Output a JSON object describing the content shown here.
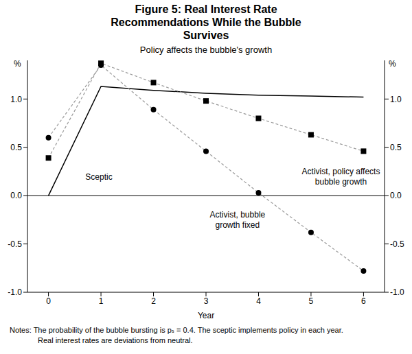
{
  "chart_data": {
    "type": "line",
    "title": "Figure 5: Real Interest Rate Recommendations While the Bubble Survives",
    "subtitle": "Policy affects the bubble's growth",
    "xlabel": "Year",
    "ylabel": "%",
    "x": [
      0,
      1,
      2,
      3,
      4,
      5,
      6
    ],
    "xlim": [
      -0.4,
      6.4
    ],
    "xticks": [
      0,
      1,
      2,
      3,
      4,
      5,
      6
    ],
    "ylim": [
      -1.0,
      1.4
    ],
    "yticks": [
      {
        "value": -1.0,
        "label": "-1.0"
      },
      -0.5,
      {
        "value": 0,
        "label": "0.0"
      },
      0.5,
      {
        "value": 1.0,
        "label": "1.0"
      }
    ],
    "grid": false,
    "series": [
      {
        "name": "Sceptic",
        "color": "#000000",
        "line_style": "solid",
        "marker": "none",
        "values": [
          0.0,
          1.13,
          1.09,
          1.06,
          1.04,
          1.03,
          1.02
        ]
      },
      {
        "name": "Activist, policy affects bubble growth",
        "color": "#9a9a9a",
        "line_style": "dashed",
        "marker": "square",
        "values": [
          0.39,
          1.37,
          1.17,
          0.98,
          0.8,
          0.63,
          0.46
        ]
      },
      {
        "name": "Activist, bubble growth fixed",
        "color": "#9a9a9a",
        "line_style": "dashed",
        "marker": "circle",
        "values": [
          0.6,
          1.35,
          0.89,
          0.46,
          0.03,
          -0.38,
          -0.78
        ]
      }
    ],
    "notes": [
      "Notes:  The probability of the bubble bursting is pₛ = 0.4. The sceptic implements policy in each year.",
      "Real interest rates are deviations from neutral."
    ]
  }
}
